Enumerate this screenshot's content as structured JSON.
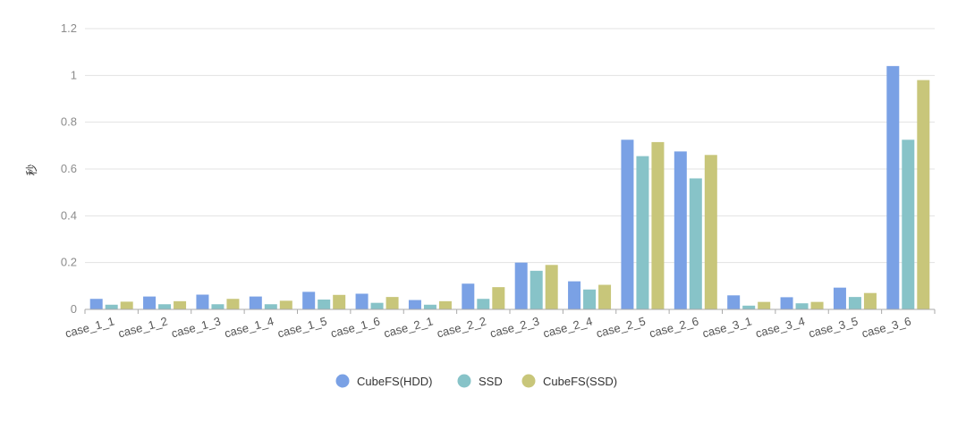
{
  "chart_data": {
    "type": "bar",
    "title": "",
    "xlabel": "",
    "ylabel": "秒",
    "ylim": [
      0,
      1.2
    ],
    "yticks": [
      "0",
      "0.2",
      "0.4",
      "0.6",
      "0.8",
      "1",
      "1.2"
    ],
    "ytick_values": [
      0,
      0.2,
      0.4,
      0.6,
      0.8,
      1,
      1.2
    ],
    "grid": true,
    "legend_position": "bottom",
    "categories": [
      "case_1_1",
      "case_1_2",
      "case_1_3",
      "case_1_4",
      "case_1_5",
      "case_1_6",
      "case_2_1",
      "case_2_2",
      "case_2_3",
      "case_2_4",
      "case_2_5",
      "case_2_6",
      "case_3_1",
      "case_3_4",
      "case_3_5",
      "case_3_6"
    ],
    "series": [
      {
        "name": "CubeFS(HDD)",
        "color": "#7aa1e5",
        "values": [
          0.045,
          0.055,
          0.063,
          0.055,
          0.075,
          0.067,
          0.04,
          0.11,
          0.2,
          0.12,
          0.725,
          0.675,
          0.06,
          0.052,
          0.093,
          1.04
        ]
      },
      {
        "name": "SSD",
        "color": "#87c3c8",
        "values": [
          0.02,
          0.022,
          0.022,
          0.022,
          0.042,
          0.028,
          0.02,
          0.045,
          0.165,
          0.085,
          0.655,
          0.56,
          0.016,
          0.026,
          0.053,
          0.725
        ]
      },
      {
        "name": "CubeFS(SSD)",
        "color": "#c8c67a",
        "values": [
          0.033,
          0.035,
          0.045,
          0.037,
          0.062,
          0.053,
          0.035,
          0.095,
          0.19,
          0.105,
          0.715,
          0.66,
          0.032,
          0.032,
          0.07,
          0.98
        ]
      }
    ]
  }
}
